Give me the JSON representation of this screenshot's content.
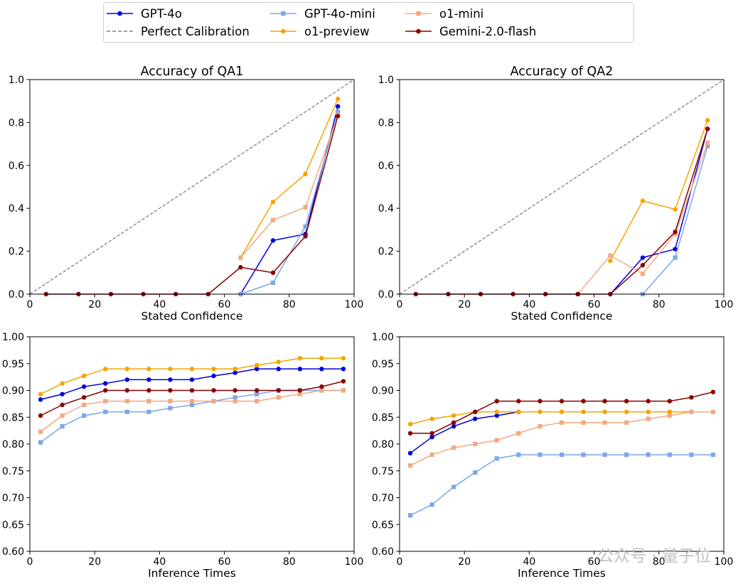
{
  "legend": {
    "entries": [
      {
        "name": "GPT-4o",
        "color": "#0000dd",
        "marker": "circle",
        "dash": false
      },
      {
        "name": "Perfect Calibration",
        "color": "#808080",
        "marker": "none",
        "dash": true
      },
      {
        "name": "GPT-4o-mini",
        "color": "#7ea6e8",
        "marker": "square",
        "dash": false
      },
      {
        "name": "o1-preview",
        "color": "#f5a400",
        "marker": "circle",
        "dash": false
      },
      {
        "name": "o1-mini",
        "color": "#f2a982",
        "marker": "square",
        "dash": false
      },
      {
        "name": "Gemini-2.0-flash",
        "color": "#8b0000",
        "marker": "circle",
        "dash": false
      }
    ]
  },
  "watermark": "公众号 · 量子位",
  "chart_data": [
    {
      "type": "line",
      "title": "Accuracy of QA1",
      "xlabel": "Stated Confidence",
      "ylabel": "",
      "xlim": [
        0,
        100
      ],
      "ylim": [
        0,
        1.0
      ],
      "xticks": [
        0,
        20,
        40,
        60,
        80,
        100
      ],
      "yticks": [
        0.0,
        0.2,
        0.4,
        0.6,
        0.8,
        1.0
      ],
      "ytick_labels": [
        "0.0",
        "0.2",
        "0.4",
        "0.6",
        "0.8",
        "1.0"
      ],
      "diagonal": true,
      "series": [
        {
          "name": "GPT-4o",
          "color": "#0000dd",
          "marker": "circle",
          "x": [
            65,
            75,
            85,
            95
          ],
          "y": [
            0.0,
            0.25,
            0.28,
            0.875
          ]
        },
        {
          "name": "GPT-4o-mini",
          "color": "#7ea6e8",
          "marker": "square",
          "x": [
            65,
            75,
            85,
            95
          ],
          "y": [
            0.0,
            0.053,
            0.315,
            0.85
          ]
        },
        {
          "name": "o1-preview",
          "color": "#f5a400",
          "marker": "circle",
          "x": [
            65,
            75,
            85,
            95
          ],
          "y": [
            0.17,
            0.43,
            0.56,
            0.91
          ]
        },
        {
          "name": "o1-mini",
          "color": "#f2a982",
          "marker": "square",
          "x": [
            65,
            75,
            85,
            95
          ],
          "y": [
            0.17,
            0.345,
            0.405,
            0.835
          ]
        },
        {
          "name": "Gemini-2.0-flash",
          "color": "#8b0000",
          "marker": "circle",
          "x": [
            5,
            15,
            25,
            35,
            45,
            55,
            65,
            75,
            85,
            95
          ],
          "y": [
            0,
            0,
            0,
            0,
            0,
            0,
            0.125,
            0.1,
            0.27,
            0.83
          ]
        }
      ]
    },
    {
      "type": "line",
      "title": "Accuracy of QA2",
      "xlabel": "Stated Confidence",
      "ylabel": "",
      "xlim": [
        0,
        100
      ],
      "ylim": [
        0,
        1.0
      ],
      "xticks": [
        0,
        20,
        40,
        60,
        80,
        100
      ],
      "yticks": [
        0.0,
        0.2,
        0.4,
        0.6,
        0.8,
        1.0
      ],
      "ytick_labels": [
        "0.0",
        "0.2",
        "0.4",
        "0.6",
        "0.8",
        "1.0"
      ],
      "diagonal": true,
      "series": [
        {
          "name": "GPT-4o",
          "color": "#0000dd",
          "marker": "circle",
          "x": [
            65,
            75,
            85,
            95
          ],
          "y": [
            0.0,
            0.17,
            0.21,
            0.77
          ]
        },
        {
          "name": "GPT-4o-mini",
          "color": "#7ea6e8",
          "marker": "square",
          "x": [
            75,
            85,
            95
          ],
          "y": [
            0.0,
            0.17,
            0.69
          ]
        },
        {
          "name": "o1-preview",
          "color": "#f5a400",
          "marker": "circle",
          "x": [
            65,
            75,
            85,
            95
          ],
          "y": [
            0.155,
            0.435,
            0.395,
            0.81
          ]
        },
        {
          "name": "o1-mini",
          "color": "#f2a982",
          "marker": "square",
          "x": [
            55,
            65,
            75,
            85,
            95
          ],
          "y": [
            0.0,
            0.18,
            0.095,
            0.28,
            0.705
          ]
        },
        {
          "name": "Gemini-2.0-flash",
          "color": "#8b0000",
          "marker": "circle",
          "x": [
            5,
            15,
            25,
            35,
            45,
            55,
            65,
            75,
            85,
            95
          ],
          "y": [
            0,
            0,
            0,
            0,
            0,
            0,
            0,
            0.135,
            0.29,
            0.77
          ]
        }
      ]
    },
    {
      "type": "line",
      "title": "",
      "xlabel": "Inference Times",
      "ylabel": "",
      "xlim": [
        0,
        100
      ],
      "ylim": [
        0.6,
        1.0
      ],
      "xticks": [
        0,
        20,
        40,
        60,
        80,
        100
      ],
      "yticks": [
        0.6,
        0.65,
        0.7,
        0.75,
        0.8,
        0.85,
        0.9,
        0.95,
        1.0
      ],
      "ytick_labels": [
        "0.60",
        "0.65",
        "0.70",
        "0.75",
        "0.80",
        "0.85",
        "0.90",
        "0.95",
        "1.00"
      ],
      "diagonal": false,
      "series": [
        {
          "name": "GPT-4o",
          "color": "#0000dd",
          "marker": "circle",
          "x": [
            3.3,
            10,
            16.7,
            23.3,
            30,
            36.7,
            43.3,
            50,
            56.7,
            63.3,
            70,
            76.7,
            83.3,
            90,
            96.7
          ],
          "y": [
            0.883,
            0.893,
            0.907,
            0.913,
            0.92,
            0.92,
            0.92,
            0.92,
            0.927,
            0.933,
            0.94,
            0.94,
            0.94,
            0.94,
            0.94
          ]
        },
        {
          "name": "GPT-4o-mini",
          "color": "#7ea6e8",
          "marker": "square",
          "x": [
            3.3,
            10,
            16.7,
            23.3,
            30,
            36.7,
            43.3,
            50,
            56.7,
            63.3,
            70,
            76.7,
            83.3,
            90,
            96.7
          ],
          "y": [
            0.803,
            0.833,
            0.853,
            0.86,
            0.86,
            0.86,
            0.867,
            0.873,
            0.88,
            0.887,
            0.893,
            0.9,
            0.9,
            0.9,
            0.9
          ]
        },
        {
          "name": "o1-preview",
          "color": "#f5a400",
          "marker": "circle",
          "x": [
            3.3,
            10,
            16.7,
            23.3,
            30,
            36.7,
            43.3,
            50,
            56.7,
            63.3,
            70,
            76.7,
            83.3,
            90,
            96.7
          ],
          "y": [
            0.893,
            0.913,
            0.927,
            0.94,
            0.94,
            0.94,
            0.94,
            0.94,
            0.94,
            0.94,
            0.947,
            0.953,
            0.96,
            0.96,
            0.96
          ]
        },
        {
          "name": "o1-mini",
          "color": "#f2a982",
          "marker": "square",
          "x": [
            3.3,
            10,
            16.7,
            23.3,
            30,
            36.7,
            43.3,
            50,
            56.7,
            63.3,
            70,
            76.7,
            83.3,
            90,
            96.7
          ],
          "y": [
            0.823,
            0.853,
            0.873,
            0.88,
            0.88,
            0.88,
            0.88,
            0.88,
            0.88,
            0.88,
            0.88,
            0.887,
            0.893,
            0.9,
            0.9
          ]
        },
        {
          "name": "Gemini-2.0-flash",
          "color": "#8b0000",
          "marker": "circle",
          "x": [
            3.3,
            10,
            16.7,
            23.3,
            30,
            36.7,
            43.3,
            50,
            56.7,
            63.3,
            70,
            76.7,
            83.3,
            90,
            96.7
          ],
          "y": [
            0.853,
            0.873,
            0.887,
            0.9,
            0.9,
            0.9,
            0.9,
            0.9,
            0.9,
            0.9,
            0.9,
            0.9,
            0.9,
            0.907,
            0.917
          ]
        }
      ]
    },
    {
      "type": "line",
      "title": "",
      "xlabel": "Inference Times",
      "ylabel": "",
      "xlim": [
        0,
        100
      ],
      "ylim": [
        0.6,
        1.0
      ],
      "xticks": [
        0,
        20,
        40,
        60,
        80,
        100
      ],
      "yticks": [
        0.6,
        0.65,
        0.7,
        0.75,
        0.8,
        0.85,
        0.9,
        0.95,
        1.0
      ],
      "ytick_labels": [
        "0.60",
        "0.65",
        "0.70",
        "0.75",
        "0.80",
        "0.85",
        "0.90",
        "0.95",
        "1.00"
      ],
      "diagonal": false,
      "series": [
        {
          "name": "GPT-4o",
          "color": "#0000dd",
          "marker": "circle",
          "x": [
            3.3,
            10,
            16.7,
            23.3,
            30,
            36.7
          ],
          "y": [
            0.783,
            0.813,
            0.833,
            0.847,
            0.853,
            0.86
          ]
        },
        {
          "name": "GPT-4o-mini",
          "color": "#7ea6e8",
          "marker": "square",
          "x": [
            3.3,
            10,
            16.7,
            23.3,
            30,
            36.7,
            43.3,
            50,
            56.7,
            63.3,
            70,
            76.7,
            83.3,
            90,
            96.7
          ],
          "y": [
            0.667,
            0.687,
            0.72,
            0.747,
            0.773,
            0.78,
            0.78,
            0.78,
            0.78,
            0.78,
            0.78,
            0.78,
            0.78,
            0.78,
            0.78
          ]
        },
        {
          "name": "o1-preview",
          "color": "#f5a400",
          "marker": "circle",
          "x": [
            3.3,
            10,
            16.7,
            23.3,
            30,
            36.7,
            43.3,
            50,
            56.7,
            63.3,
            70,
            76.7,
            83.3,
            90
          ],
          "y": [
            0.837,
            0.847,
            0.853,
            0.86,
            0.86,
            0.86,
            0.86,
            0.86,
            0.86,
            0.86,
            0.86,
            0.86,
            0.86,
            0.86
          ]
        },
        {
          "name": "o1-mini",
          "color": "#f2a982",
          "marker": "square",
          "x": [
            3.3,
            10,
            16.7,
            23.3,
            30,
            36.7,
            43.3,
            50,
            56.7,
            63.3,
            70,
            76.7,
            83.3,
            90,
            96.7
          ],
          "y": [
            0.76,
            0.78,
            0.793,
            0.8,
            0.807,
            0.82,
            0.833,
            0.84,
            0.84,
            0.84,
            0.84,
            0.847,
            0.853,
            0.86,
            0.86
          ]
        },
        {
          "name": "Gemini-2.0-flash",
          "color": "#8b0000",
          "marker": "circle",
          "x": [
            3.3,
            10,
            16.7,
            23.3,
            30,
            36.7,
            43.3,
            50,
            56.7,
            63.3,
            70,
            76.7,
            83.3,
            90,
            96.7
          ],
          "y": [
            0.82,
            0.82,
            0.84,
            0.86,
            0.88,
            0.88,
            0.88,
            0.88,
            0.88,
            0.88,
            0.88,
            0.88,
            0.88,
            0.887,
            0.897
          ]
        }
      ]
    }
  ]
}
